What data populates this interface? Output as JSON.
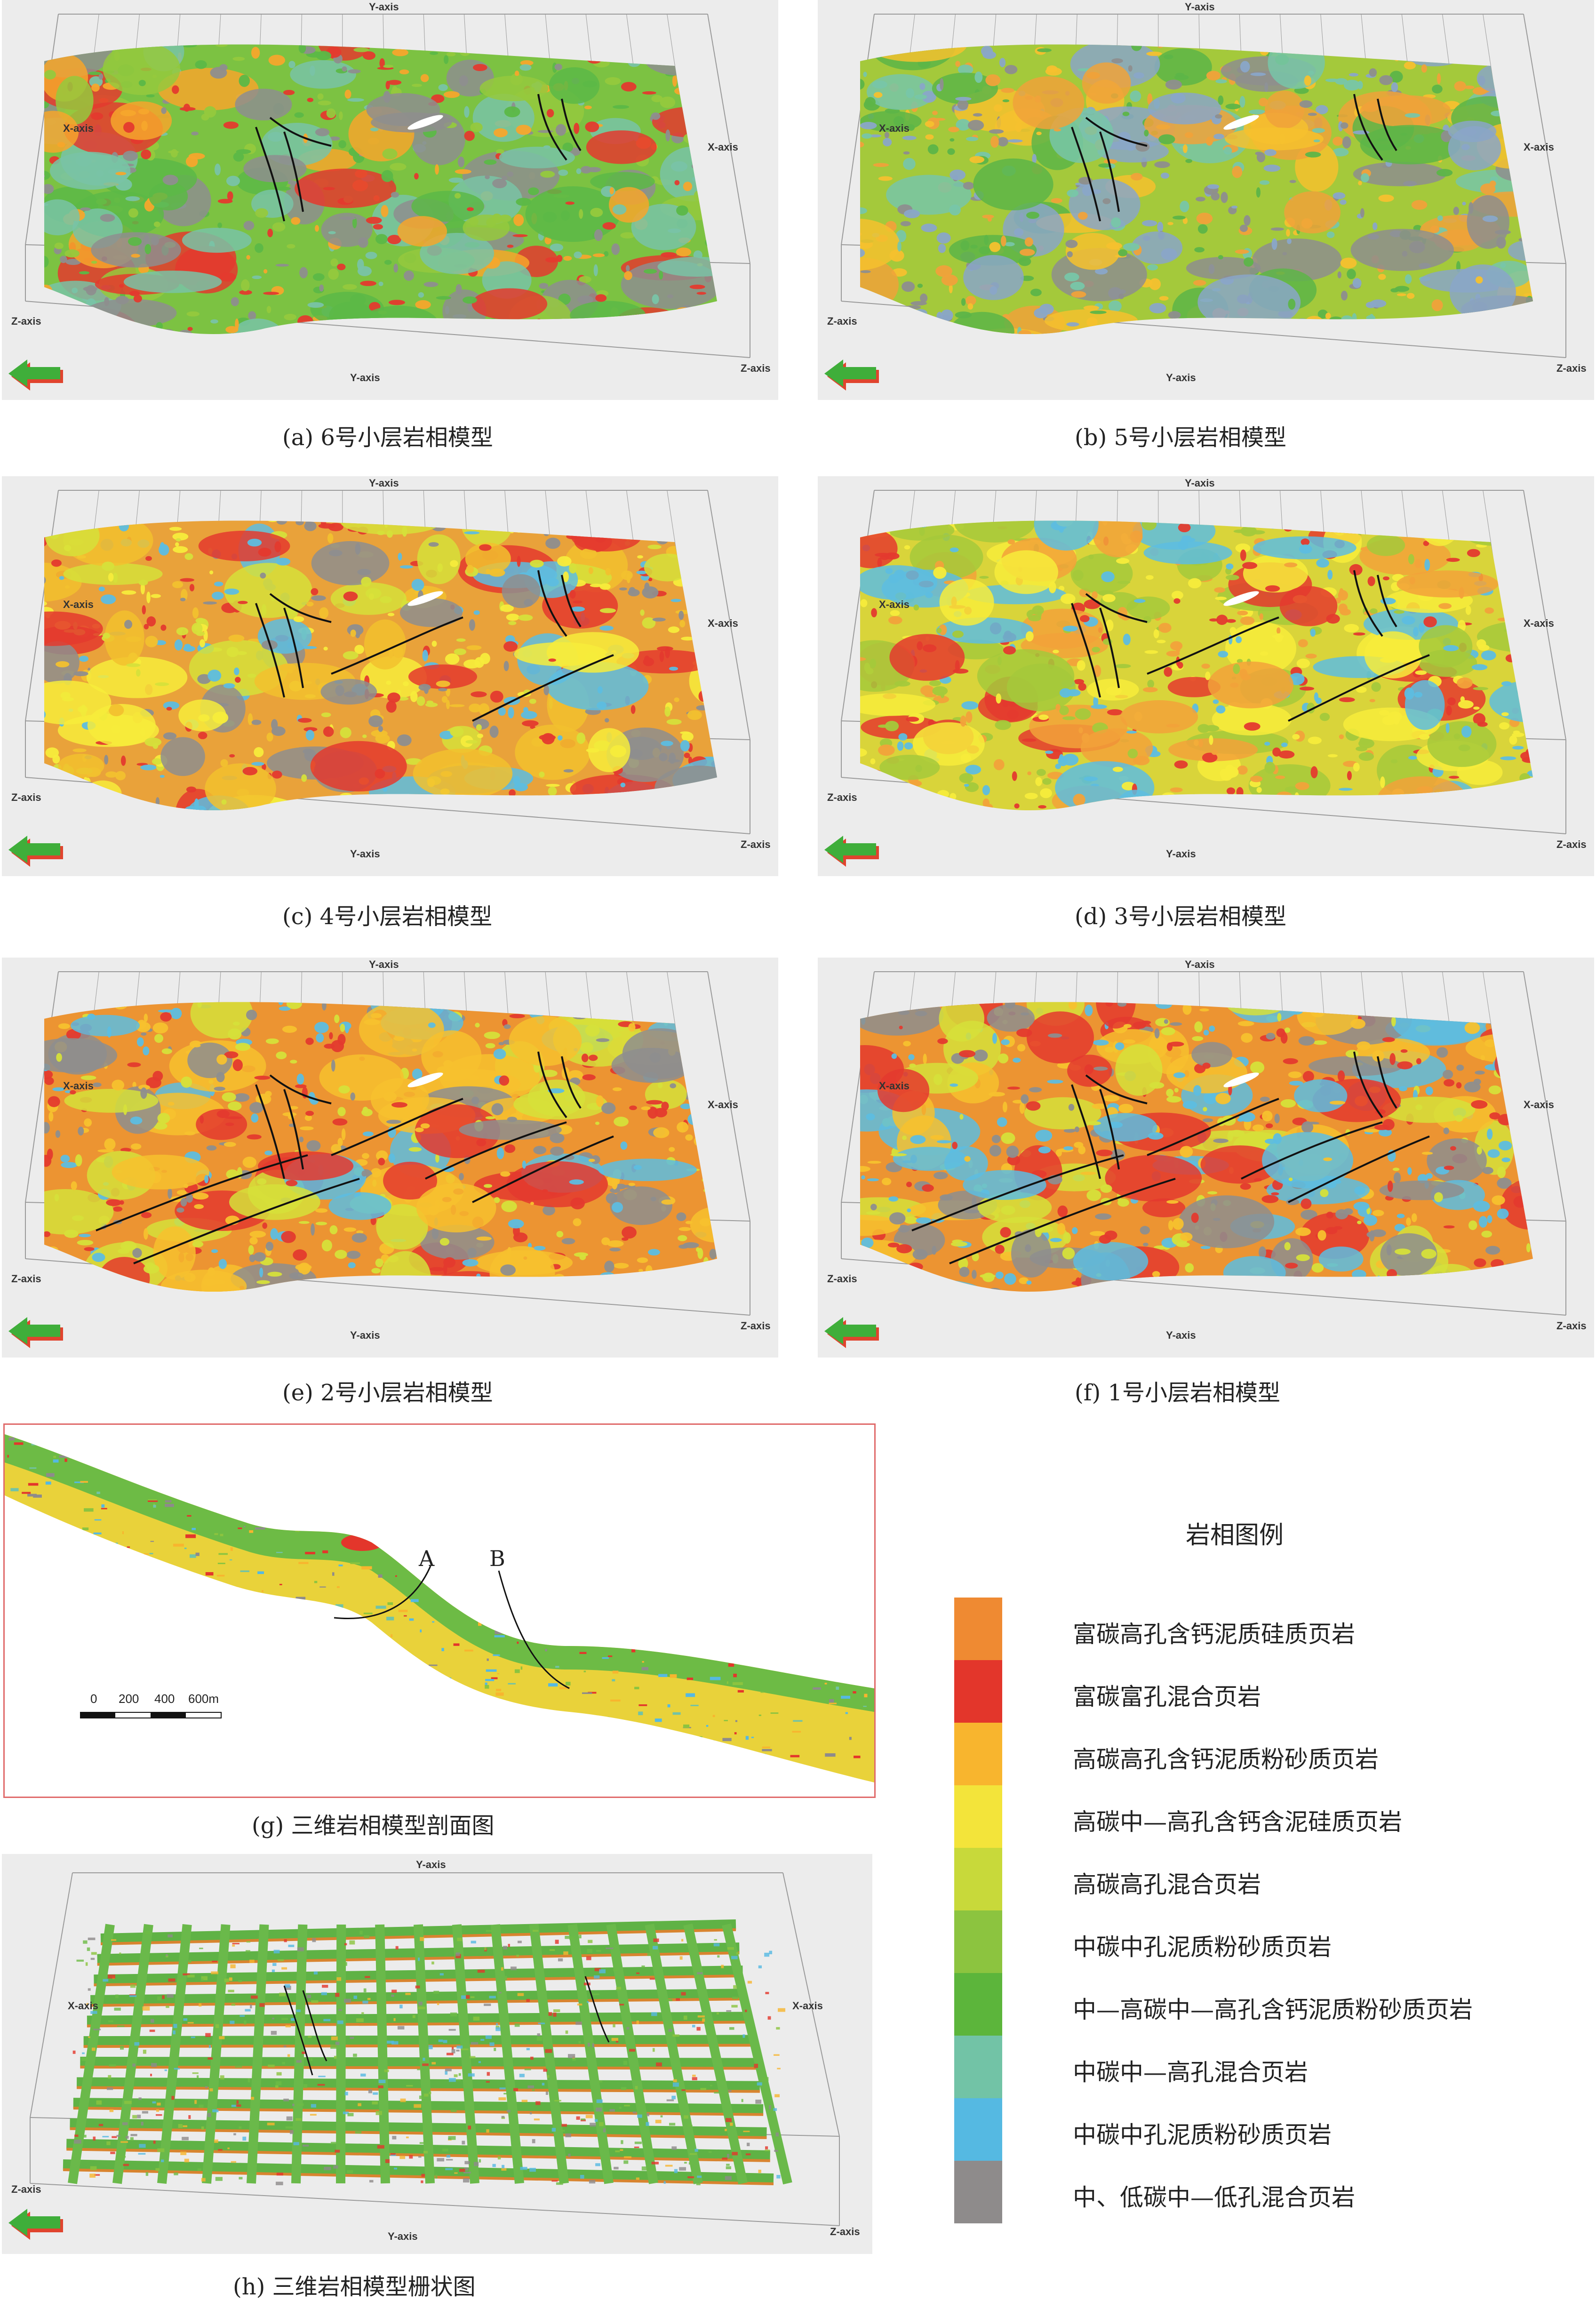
{
  "axes": {
    "x": "X-axis",
    "y": "Y-axis",
    "z": "Z-axis"
  },
  "panels": [
    {
      "id": "a",
      "caption": "(a) 6号小层岩相模型",
      "base": "#7cc242",
      "mix": [
        "#5cb847",
        "#95c93d",
        "#79c3a6",
        "#8e8e8e",
        "#e43a2e",
        "#f6a62c"
      ]
    },
    {
      "id": "b",
      "caption": "(b) 5号小层岩相模型",
      "base": "#a4c93b",
      "mix": [
        "#f6c12e",
        "#78c6a8",
        "#8aa6c8",
        "#5db548",
        "#f0a23a",
        "#8e8e8e"
      ]
    },
    {
      "id": "c",
      "caption": "(c) 4号小层岩相模型",
      "base": "#e9a23a",
      "mix": [
        "#e43a2e",
        "#d6e03a",
        "#f2c12e",
        "#5dbde0",
        "#f7ec3b",
        "#8e8e8e"
      ]
    },
    {
      "id": "d",
      "caption": "(d) 3号小层岩相模型",
      "base": "#d9d43a",
      "mix": [
        "#e43a2e",
        "#f2a23a",
        "#5dbde0",
        "#f7ec3b",
        "#a4c93b"
      ]
    },
    {
      "id": "e",
      "caption": "(e) 2号小层岩相模型",
      "base": "#ec9432",
      "mix": [
        "#e43a2e",
        "#d6e03a",
        "#f7c12e",
        "#5dbde0",
        "#8e8e8e"
      ]
    },
    {
      "id": "f",
      "caption": "(f) 1号小层岩相模型",
      "base": "#ec9432",
      "mix": [
        "#e43a2e",
        "#d6e03a",
        "#f7c12e",
        "#8e8e8e",
        "#5dbde0"
      ]
    }
  ],
  "section": {
    "caption": "(g) 三维岩相模型剖面图",
    "marker_a": "A",
    "marker_b": "B",
    "scale_ticks": [
      "0",
      "200",
      "400",
      "600m"
    ]
  },
  "fence": {
    "caption": "(h) 三维岩相模型栅状图"
  },
  "legend": {
    "title": "岩相图例",
    "items": [
      {
        "label": "富碳高孔含钙泥质硅质页岩",
        "color": "#ef8a32"
      },
      {
        "label": "富碳富孔混合页岩",
        "color": "#e3362b"
      },
      {
        "label": "高碳高孔含钙泥质粉砂质页岩",
        "color": "#f8b52e"
      },
      {
        "label": "高碳中—高孔含钙含泥硅质页岩",
        "color": "#f3e43a"
      },
      {
        "label": "高碳高孔混合页岩",
        "color": "#c8d93a"
      },
      {
        "label": "中碳中孔泥质粉砂质页岩",
        "color": "#8cc43f"
      },
      {
        "label": "中—高碳中—高孔含钙泥质粉砂质页岩",
        "color": "#5cb53b"
      },
      {
        "label": "中碳中—高孔混合页岩",
        "color": "#72c3a6"
      },
      {
        "label": "中碳中孔泥质粉砂质页岩",
        "color": "#55b9e2"
      },
      {
        "label": "中、低碳中—低孔混合页岩",
        "color": "#8e8b8b"
      }
    ]
  }
}
